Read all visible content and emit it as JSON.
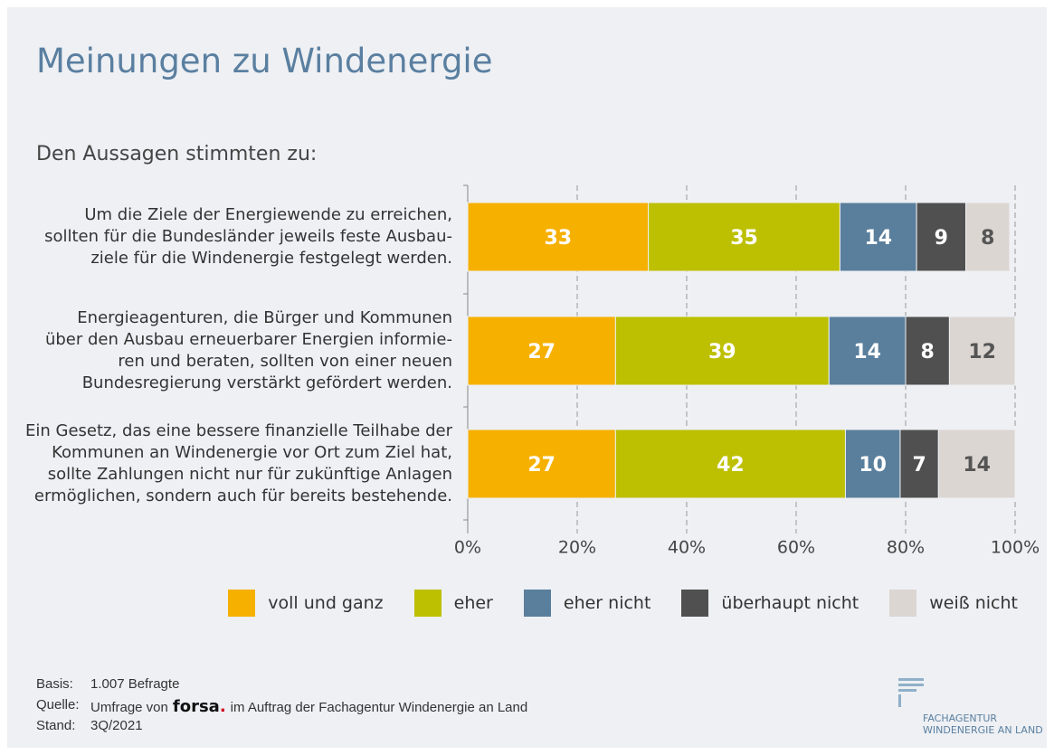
{
  "header": {
    "title": "Meinungen zu Windenergie",
    "subtitle": "Den Aussagen stimmten zu:"
  },
  "chart_data": {
    "type": "stacked_barh",
    "categories": [
      "Um die Ziele der Energiewende zu erreichen,\nsollten für die Bundesländer jeweils feste Ausbau-\nziele für die Windenergie festgelegt werden.",
      "Energieagenturen, die Bürger und Kommunen\nüber den Ausbau erneuerbarer Energien informie-\nren und beraten, sollten von einer neuen\nBundesregierung verstärkt gefördert werden.",
      "Ein Gesetz, das eine bessere finanzielle Teilhabe der\nKommunen an Windenergie vor Ort zum Ziel hat,\nsollte Zahlungen nicht nur für zukünftige Anlagen\nermöglichen, sondern auch für bereits bestehende."
    ],
    "series": [
      {
        "name": "voll und ganz",
        "color": "#f6b000",
        "label_color": "#ffffff",
        "values": [
          33,
          27,
          27
        ]
      },
      {
        "name": "eher",
        "color": "#bdc000",
        "label_color": "#ffffff",
        "values": [
          35,
          39,
          42
        ]
      },
      {
        "name": "eher nicht",
        "color": "#5a7f9c",
        "label_color": "#ffffff",
        "values": [
          14,
          14,
          10
        ]
      },
      {
        "name": "überhaupt nicht",
        "color": "#505050",
        "label_color": "#ffffff",
        "values": [
          9,
          8,
          7
        ]
      },
      {
        "name": "weiß nicht",
        "color": "#dcd6d2",
        "label_color": "#555555",
        "values": [
          8,
          12,
          14
        ]
      }
    ],
    "xlim": [
      0,
      100
    ],
    "xticks": [
      {
        "value": 0,
        "label": "0%"
      },
      {
        "value": 20,
        "label": "20%"
      },
      {
        "value": 40,
        "label": "40%"
      },
      {
        "value": 60,
        "label": "60%"
      },
      {
        "value": 80,
        "label": "80%"
      },
      {
        "value": 100,
        "label": "100%"
      }
    ],
    "grid": true
  },
  "footer": {
    "basis_label": "Basis:",
    "basis": "1.007 Befragte",
    "source_label": "Quelle:",
    "source_prefix": "Umfrage von",
    "source_brand": "forsa",
    "source_brand_mark": ".",
    "source_suffix": "im Auftrag der Fachagentur Windenergie an Land",
    "date_label": "Stand:",
    "date": "3Q/2021"
  },
  "logo": {
    "text": "FACHAGENTUR\nWINDENERGIE AN LAND"
  }
}
